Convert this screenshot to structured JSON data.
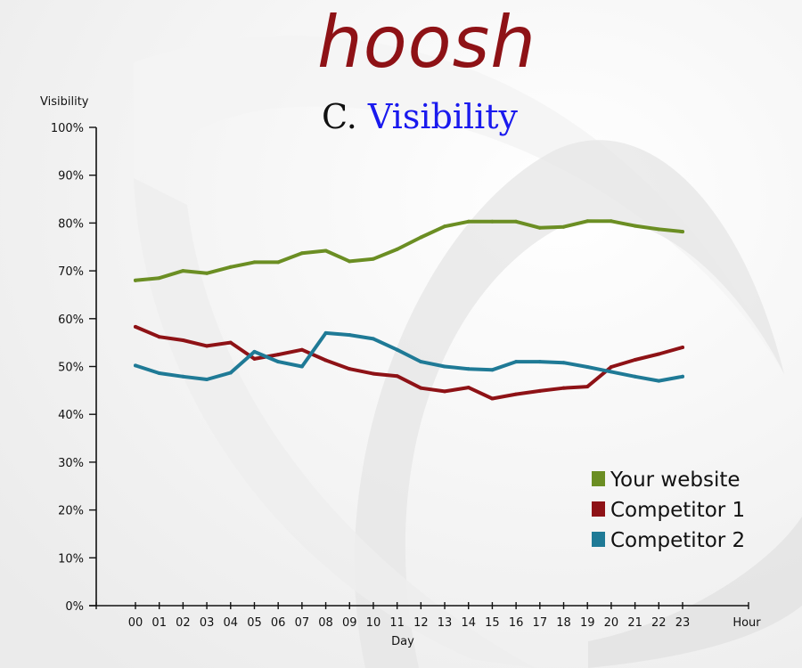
{
  "brand": "hoosh",
  "subtitle": {
    "prefix": "C.",
    "word": "Visibility"
  },
  "chart_data": {
    "type": "line",
    "ylabel": "Visibility",
    "xlabel": "Day",
    "x_end_label": "Hour",
    "ylim": [
      0,
      100
    ],
    "y_ticks": [
      "0%",
      "10%",
      "20%",
      "30%",
      "40%",
      "50%",
      "60%",
      "70%",
      "80%",
      "90%",
      "100%"
    ],
    "y_tick_values": [
      0,
      10,
      20,
      30,
      40,
      50,
      60,
      70,
      80,
      90,
      100
    ],
    "categories": [
      "00",
      "01",
      "02",
      "03",
      "04",
      "05",
      "06",
      "07",
      "08",
      "09",
      "10",
      "11",
      "12",
      "13",
      "14",
      "15",
      "16",
      "17",
      "18",
      "19",
      "20",
      "21",
      "22",
      "23"
    ],
    "grid": false,
    "legend": "bottom-right",
    "series": [
      {
        "name": "Your website",
        "color": "#6b8e23",
        "values": [
          68,
          68.5,
          70,
          69.5,
          70.8,
          71.8,
          71.8,
          73.7,
          74.2,
          72,
          72.5,
          74.5,
          77,
          79.3,
          80.3,
          80.3,
          80.3,
          79,
          79.2,
          80.4,
          80.4,
          79.4,
          78.7,
          78.2
        ]
      },
      {
        "name": "Competitor 1",
        "color": "#8e1216",
        "values": [
          58.3,
          56.2,
          55.5,
          54.3,
          55,
          51.6,
          52.5,
          53.5,
          51.3,
          49.5,
          48.5,
          48,
          45.5,
          44.8,
          45.6,
          43.3,
          44.2,
          44.9,
          45.5,
          45.8,
          49.9,
          51.4,
          52.6,
          54
        ]
      },
      {
        "name": "Competitor 2",
        "color": "#1f7a96",
        "values": [
          50.2,
          48.6,
          47.9,
          47.3,
          48.7,
          53.1,
          51,
          50,
          57,
          56.6,
          55.8,
          53.5,
          51,
          50,
          49.5,
          49.3,
          51,
          51,
          50.8,
          49.9,
          48.9,
          47.9,
          47,
          47.9
        ]
      }
    ]
  }
}
